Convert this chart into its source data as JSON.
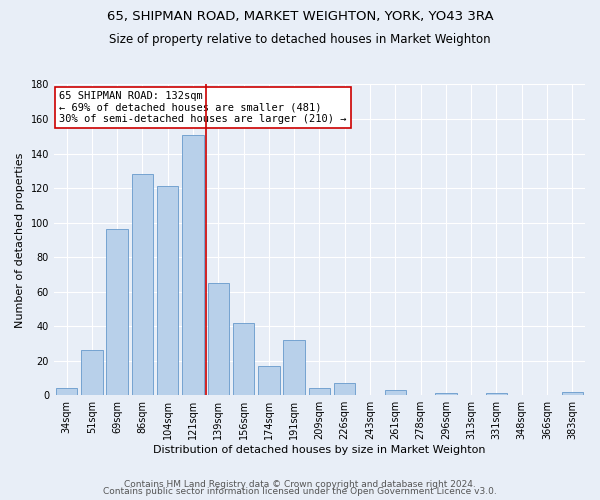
{
  "title1": "65, SHIPMAN ROAD, MARKET WEIGHTON, YORK, YO43 3RA",
  "title2": "Size of property relative to detached houses in Market Weighton",
  "xlabel": "Distribution of detached houses by size in Market Weighton",
  "ylabel": "Number of detached properties",
  "categories": [
    "34sqm",
    "51sqm",
    "69sqm",
    "86sqm",
    "104sqm",
    "121sqm",
    "139sqm",
    "156sqm",
    "174sqm",
    "191sqm",
    "209sqm",
    "226sqm",
    "243sqm",
    "261sqm",
    "278sqm",
    "296sqm",
    "313sqm",
    "331sqm",
    "348sqm",
    "366sqm",
    "383sqm"
  ],
  "values": [
    4,
    26,
    96,
    128,
    121,
    151,
    65,
    42,
    17,
    32,
    4,
    7,
    0,
    3,
    0,
    1,
    0,
    1,
    0,
    0,
    2
  ],
  "bar_color": "#b8d0ea",
  "bar_edge_color": "#6699cc",
  "vline_x": 5.5,
  "vline_color": "#cc0000",
  "annotation_text": "65 SHIPMAN ROAD: 132sqm\n← 69% of detached houses are smaller (481)\n30% of semi-detached houses are larger (210) →",
  "annotation_box_color": "#ffffff",
  "annotation_box_edge": "#cc0000",
  "ylim": [
    0,
    180
  ],
  "yticks": [
    0,
    20,
    40,
    60,
    80,
    100,
    120,
    140,
    160,
    180
  ],
  "footer1": "Contains HM Land Registry data © Crown copyright and database right 2024.",
  "footer2": "Contains public sector information licensed under the Open Government Licence v3.0.",
  "bg_color": "#e8eef7",
  "plot_bg_color": "#e8eef7",
  "title1_fontsize": 9.5,
  "title2_fontsize": 8.5,
  "xlabel_fontsize": 8,
  "ylabel_fontsize": 8,
  "tick_fontsize": 7,
  "annotation_fontsize": 7.5,
  "footer_fontsize": 6.5
}
